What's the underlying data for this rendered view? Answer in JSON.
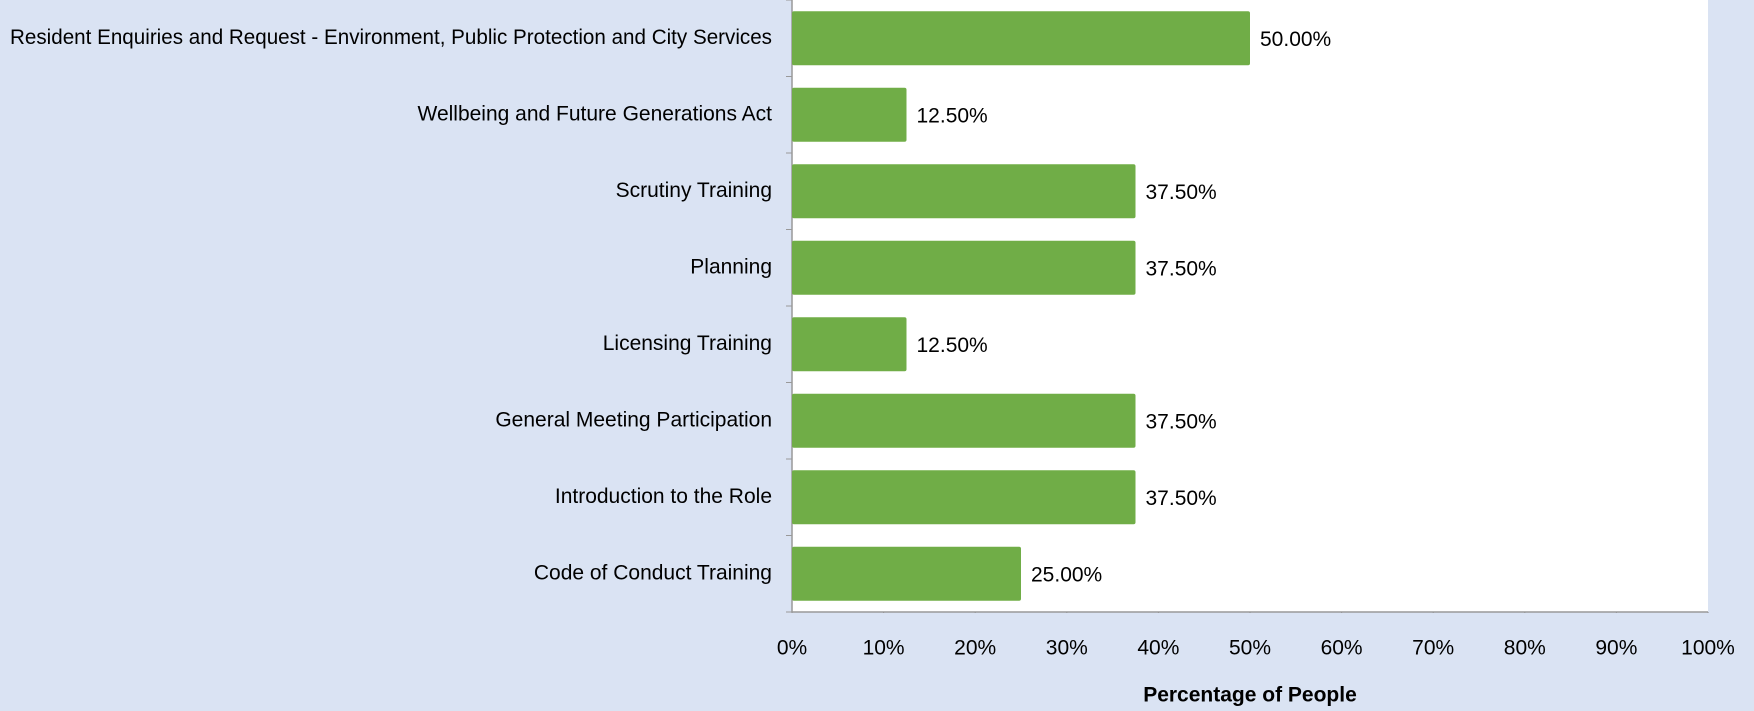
{
  "chart_data": {
    "type": "bar",
    "orientation": "horizontal",
    "categories": [
      "Resident Enquiries and  Request - Environment,  Public Protection  and City Services",
      "Wellbeing and Future Generations Act",
      "Scrutiny Training",
      "Planning",
      "Licensing Training",
      "General Meeting Participation",
      "Introduction to the Role",
      "Code of Conduct Training"
    ],
    "values": [
      50,
      12.5,
      37.5,
      37.5,
      12.5,
      37.5,
      37.5,
      25
    ],
    "value_labels": [
      "50.00%",
      "12.50%",
      "37.50%",
      "37.50%",
      "12.50%",
      "37.50%",
      "37.50%",
      "25.00%"
    ],
    "color": "#70ad47",
    "xlabel": "Percentage of People",
    "xlim": [
      0,
      100
    ],
    "xticks": [
      {
        "value": 0,
        "label": "0%"
      },
      {
        "value": 10,
        "label": "10%"
      },
      {
        "value": 20,
        "label": "20%"
      },
      {
        "value": 30,
        "label": "30%"
      },
      {
        "value": 40,
        "label": "40%"
      },
      {
        "value": 50,
        "label": "50%"
      },
      {
        "value": 60,
        "label": "60%"
      },
      {
        "value": 70,
        "label": "70%"
      },
      {
        "value": 80,
        "label": "80%"
      },
      {
        "value": 90,
        "label": "90%"
      },
      {
        "value": 100,
        "label": "100%"
      }
    ],
    "grid": false
  }
}
